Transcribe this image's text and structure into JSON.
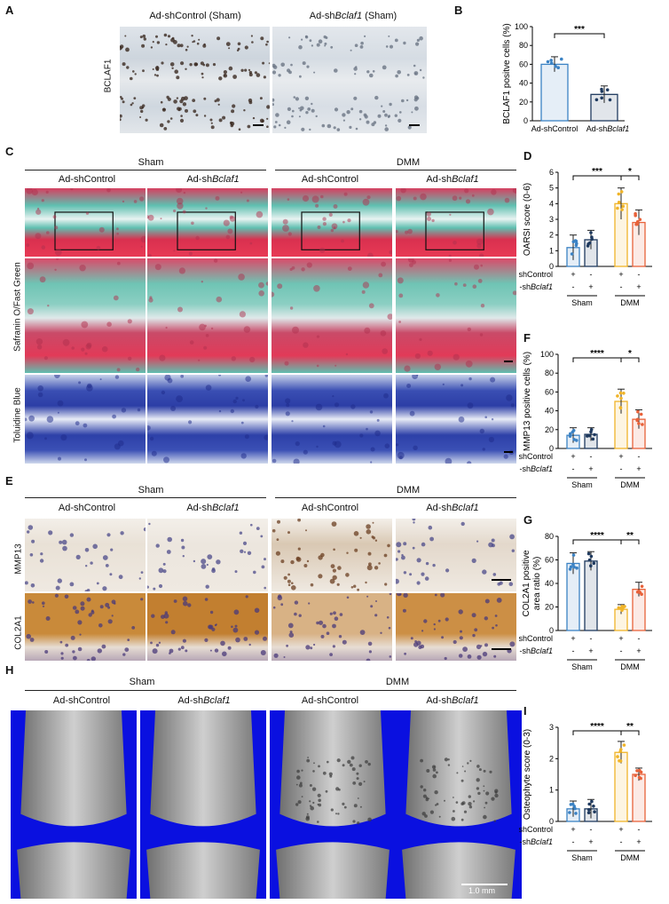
{
  "panel_letters": {
    "A": "A",
    "B": "B",
    "C": "C",
    "D": "D",
    "E": "E",
    "F": "F",
    "G": "G",
    "H": "H",
    "I": "I"
  },
  "panelA": {
    "stain": "BCLAF1",
    "col1": "Ad-shControl (Sham)",
    "col2_prefix": "Ad-sh",
    "col2_gene": "Bclaf1",
    "col2_suffix": " (Sham)"
  },
  "groups": {
    "sham": "Sham",
    "dmm": "DMM"
  },
  "treatments": {
    "control": "Ad-shControl",
    "sh_prefix": "Ad-sh",
    "sh_gene": "Bclaf1"
  },
  "panelC": {
    "row1": "Safranin O/Fast Green",
    "row2": "Toluidine Blue"
  },
  "panelE": {
    "row1": "MMP13",
    "row2": "COL2A1"
  },
  "panelH": {
    "scale": "1.0 mm"
  },
  "matrix": {
    "plus": "+",
    "minus": "-"
  },
  "colors": {
    "control": "#3b82c4",
    "sh": "#1f3a5f",
    "dmm_control": "#f0b429",
    "dmm_sh": "#e8623a"
  },
  "chart_data": [
    {
      "id": "B",
      "type": "bar",
      "categories": [
        "Ad-shControl",
        "Ad-shBclaf1"
      ],
      "values": [
        60,
        28
      ],
      "errors": [
        8,
        9
      ],
      "ylabel": "BCLAF1 positve cells (%)",
      "ylim": [
        0,
        100
      ],
      "yticks": [
        0,
        20,
        40,
        60,
        80,
        100
      ],
      "significance": [
        {
          "pair": [
            0,
            1
          ],
          "label": "***"
        }
      ]
    },
    {
      "id": "D",
      "type": "bar",
      "categories": [
        "Sham Ad-shControl",
        "Sham Ad-shBclaf1",
        "DMM Ad-shControl",
        "DMM Ad-shBclaf1"
      ],
      "values": [
        1.2,
        1.7,
        4.0,
        2.8
      ],
      "errors": [
        0.8,
        0.6,
        1.0,
        0.8
      ],
      "ylabel": "OARSI score (0-6)",
      "ylim": [
        0,
        6
      ],
      "yticks": [
        0,
        1,
        2,
        3,
        4,
        5,
        6
      ],
      "significance": [
        {
          "pair": [
            0,
            2
          ],
          "label": "***"
        },
        {
          "pair": [
            2,
            3
          ],
          "label": "*"
        }
      ]
    },
    {
      "id": "F",
      "type": "bar",
      "categories": [
        "Sham Ad-shControl",
        "Sham Ad-shBclaf1",
        "DMM Ad-shControl",
        "DMM Ad-shBclaf1"
      ],
      "values": [
        14,
        15,
        50,
        31
      ],
      "errors": [
        8,
        7,
        13,
        10
      ],
      "ylabel": "MMP13 positive cells (%)",
      "ylim": [
        0,
        100
      ],
      "yticks": [
        0,
        20,
        40,
        60,
        80,
        100
      ],
      "significance": [
        {
          "pair": [
            0,
            2
          ],
          "label": "****"
        },
        {
          "pair": [
            2,
            3
          ],
          "label": "*"
        }
      ]
    },
    {
      "id": "G",
      "type": "bar",
      "categories": [
        "Sham Ad-shControl",
        "Sham Ad-shBclaf1",
        "DMM Ad-shControl",
        "DMM Ad-shBclaf1"
      ],
      "values": [
        57,
        59,
        18,
        35
      ],
      "errors": [
        9,
        8,
        4,
        6
      ],
      "ylabel": "COL2A1 positive area ratio (%)",
      "ylim": [
        0,
        80
      ],
      "yticks": [
        0,
        20,
        40,
        60,
        80
      ],
      "significance": [
        {
          "pair": [
            0,
            2
          ],
          "label": "****"
        },
        {
          "pair": [
            2,
            3
          ],
          "label": "**"
        }
      ]
    },
    {
      "id": "I",
      "type": "bar",
      "categories": [
        "Sham Ad-shControl",
        "Sham Ad-shBclaf1",
        "DMM Ad-shControl",
        "DMM Ad-shBclaf1"
      ],
      "values": [
        0.4,
        0.4,
        2.2,
        1.5
      ],
      "errors": [
        0.25,
        0.3,
        0.35,
        0.2
      ],
      "ylabel": "Osteophyte score (0-3)",
      "ylim": [
        0,
        3
      ],
      "yticks": [
        0,
        1,
        2,
        3
      ],
      "significance": [
        {
          "pair": [
            0,
            2
          ],
          "label": "****"
        },
        {
          "pair": [
            2,
            3
          ],
          "label": "**"
        }
      ]
    }
  ]
}
